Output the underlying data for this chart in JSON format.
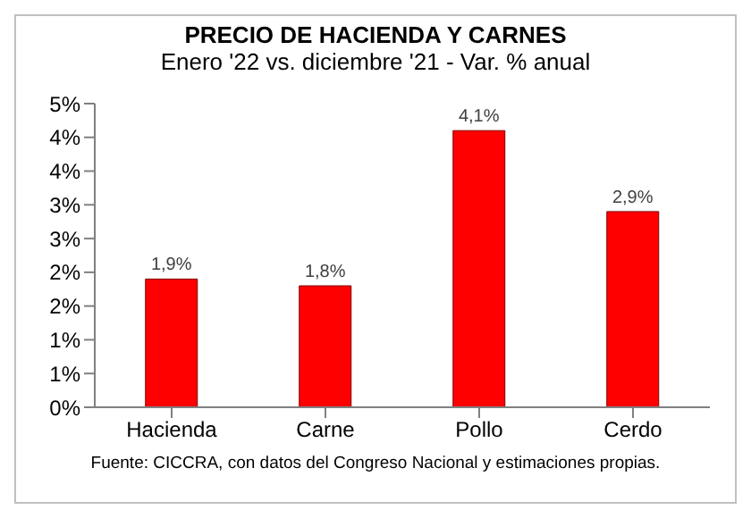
{
  "chart_data": {
    "type": "bar",
    "title": "PRECIO DE HACIENDA Y CARNES",
    "subtitle": "Enero '22 vs. diciembre '21 - Var. % anual",
    "categories": [
      "Hacienda",
      "Carne",
      "Pollo",
      "Cerdo"
    ],
    "values": [
      1.9,
      1.8,
      4.1,
      2.9
    ],
    "color": "#ff0000",
    "value_labels": [
      "1,9%",
      "1,8%",
      "4,1%",
      "2,9%"
    ],
    "ylim": [
      0,
      4.5
    ],
    "yticks": [
      {
        "value": 0,
        "label": "0%"
      },
      {
        "value": 0.5,
        "label": "1%"
      },
      {
        "value": 1,
        "label": "1%"
      },
      {
        "value": 1.5,
        "label": "2%"
      },
      {
        "value": 2,
        "label": "2%"
      },
      {
        "value": 2.5,
        "label": "3%"
      },
      {
        "value": 3,
        "label": "3%"
      },
      {
        "value": 3.5,
        "label": "4%"
      },
      {
        "value": 4,
        "label": "4%"
      },
      {
        "value": 4.5,
        "label": "5%"
      }
    ],
    "grid": false,
    "legend": false,
    "annotations": [
      "Fuente: CICCRA, con datos del Congreso Nacional y estimaciones propias."
    ]
  }
}
